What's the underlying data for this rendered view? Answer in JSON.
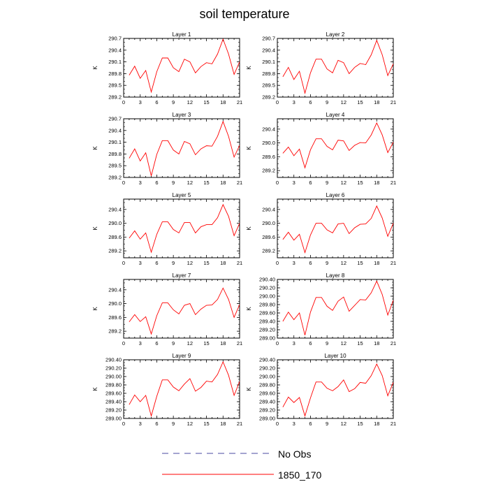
{
  "title": "soil temperature",
  "legend": {
    "items": [
      {
        "label": "No Obs",
        "color": "#4a4aa0",
        "dash": true
      },
      {
        "label": "1850_170",
        "color": "#ff0000",
        "dash": false
      }
    ]
  },
  "chart_data": [
    {
      "type": "line",
      "title": "Layer 1",
      "xlabel": "",
      "ylabel": "K",
      "xlim": [
        0,
        21
      ],
      "ylim": [
        289.2,
        290.7
      ],
      "xticks": [
        0,
        3,
        6,
        9,
        12,
        15,
        18,
        21
      ],
      "yticks": [
        289.2,
        289.5,
        289.8,
        290.1,
        290.4,
        290.7
      ],
      "yticklabels": [
        "289.2",
        "289.5",
        "289.8",
        "290.1",
        "290.4",
        "290.7"
      ],
      "series": [
        {
          "name": "1850_170",
          "color": "#ff0000",
          "x": [
            1,
            2,
            3,
            4,
            5,
            6,
            7,
            8,
            9,
            10,
            11,
            12,
            13,
            14,
            15,
            16,
            17,
            18,
            19,
            20,
            21
          ],
          "y": [
            289.76,
            289.99,
            289.68,
            289.88,
            289.33,
            289.85,
            290.2,
            290.2,
            289.95,
            289.85,
            290.17,
            290.1,
            289.82,
            289.98,
            290.08,
            290.05,
            290.3,
            290.68,
            290.3,
            289.78,
            290.1
          ]
        }
      ]
    },
    {
      "type": "line",
      "title": "Layer 2",
      "xlabel": "",
      "ylabel": "K",
      "xlim": [
        0,
        21
      ],
      "ylim": [
        289.2,
        290.7
      ],
      "xticks": [
        0,
        3,
        6,
        9,
        12,
        15,
        18,
        21
      ],
      "yticks": [
        289.2,
        289.5,
        289.8,
        290.1,
        290.4,
        290.7
      ],
      "yticklabels": [
        "289.2",
        "289.5",
        "289.8",
        "290.1",
        "290.4",
        "290.7"
      ],
      "series": [
        {
          "name": "1850_170",
          "color": "#ff0000",
          "x": [
            1,
            2,
            3,
            4,
            5,
            6,
            7,
            8,
            9,
            10,
            11,
            12,
            13,
            14,
            15,
            16,
            17,
            18,
            19,
            20,
            21
          ],
          "y": [
            289.72,
            289.96,
            289.65,
            289.86,
            289.3,
            289.82,
            290.17,
            290.17,
            289.92,
            289.82,
            290.14,
            290.08,
            289.8,
            289.96,
            290.06,
            290.03,
            290.28,
            290.65,
            290.28,
            289.75,
            290.05
          ]
        }
      ]
    },
    {
      "type": "line",
      "title": "Layer 3",
      "xlabel": "",
      "ylabel": "K",
      "xlim": [
        0,
        21
      ],
      "ylim": [
        289.2,
        290.7
      ],
      "xticks": [
        0,
        3,
        6,
        9,
        12,
        15,
        18,
        21
      ],
      "yticks": [
        289.2,
        289.5,
        289.8,
        290.1,
        290.4,
        290.7
      ],
      "yticklabels": [
        "289.2",
        "289.5",
        "289.8",
        "290.1",
        "290.4",
        "290.7"
      ],
      "series": [
        {
          "name": "1850_170",
          "color": "#ff0000",
          "x": [
            1,
            2,
            3,
            4,
            5,
            6,
            7,
            8,
            9,
            10,
            11,
            12,
            13,
            14,
            15,
            16,
            17,
            18,
            19,
            20,
            21
          ],
          "y": [
            289.69,
            289.93,
            289.62,
            289.83,
            289.24,
            289.79,
            290.14,
            290.14,
            289.9,
            289.8,
            290.12,
            290.06,
            289.78,
            289.93,
            290.01,
            290.0,
            290.25,
            290.63,
            290.25,
            289.72,
            290.02
          ]
        }
      ]
    },
    {
      "type": "line",
      "title": "Layer 4",
      "xlabel": "",
      "ylabel": "K",
      "xlim": [
        0,
        21
      ],
      "ylim": [
        289.0,
        290.7
      ],
      "xticks": [
        0,
        3,
        6,
        9,
        12,
        15,
        18,
        21
      ],
      "yticks": [
        289.2,
        289.6,
        290.0,
        290.4
      ],
      "yticklabels": [
        "289.2",
        "289.6",
        "290.0",
        "290.4"
      ],
      "series": [
        {
          "name": "1850_170",
          "color": "#ff0000",
          "x": [
            1,
            2,
            3,
            4,
            5,
            6,
            7,
            8,
            9,
            10,
            11,
            12,
            13,
            14,
            15,
            16,
            17,
            18,
            19,
            20,
            21
          ],
          "y": [
            289.7,
            289.88,
            289.63,
            289.82,
            289.28,
            289.8,
            290.12,
            290.12,
            289.9,
            289.8,
            290.08,
            290.06,
            289.78,
            289.93,
            290.01,
            290.0,
            290.23,
            290.58,
            290.23,
            289.72,
            290.02
          ]
        }
      ]
    },
    {
      "type": "line",
      "title": "Layer 5",
      "xlabel": "",
      "ylabel": "K",
      "xlim": [
        0,
        21
      ],
      "ylim": [
        289.0,
        290.7
      ],
      "xticks": [
        0,
        3,
        6,
        9,
        12,
        15,
        18,
        21
      ],
      "yticks": [
        289.2,
        289.6,
        290.0,
        290.4
      ],
      "yticklabels": [
        "289.2",
        "289.6",
        "290.0",
        "290.4"
      ],
      "series": [
        {
          "name": "1850_170",
          "color": "#ff0000",
          "x": [
            1,
            2,
            3,
            4,
            5,
            6,
            7,
            8,
            9,
            10,
            11,
            12,
            13,
            14,
            15,
            16,
            17,
            18,
            19,
            20,
            21
          ],
          "y": [
            289.57,
            289.78,
            289.54,
            289.72,
            289.16,
            289.68,
            290.04,
            290.04,
            289.82,
            289.72,
            290.02,
            290.02,
            289.72,
            289.9,
            289.96,
            289.96,
            290.16,
            290.54,
            290.2,
            289.64,
            290.0
          ]
        }
      ]
    },
    {
      "type": "line",
      "title": "Layer 6",
      "xlabel": "",
      "ylabel": "K",
      "xlim": [
        0,
        21
      ],
      "ylim": [
        289.0,
        290.7
      ],
      "xticks": [
        0,
        3,
        6,
        9,
        12,
        15,
        18,
        21
      ],
      "yticks": [
        289.2,
        289.6,
        290.0,
        290.4
      ],
      "yticklabels": [
        "289.2",
        "289.6",
        "290.0",
        "290.4"
      ],
      "series": [
        {
          "name": "1850_170",
          "color": "#ff0000",
          "x": [
            1,
            2,
            3,
            4,
            5,
            6,
            7,
            8,
            9,
            10,
            11,
            12,
            13,
            14,
            15,
            16,
            17,
            18,
            19,
            20,
            21
          ],
          "y": [
            289.53,
            289.74,
            289.51,
            289.68,
            289.15,
            289.66,
            290.0,
            290.0,
            289.81,
            289.72,
            289.98,
            290.0,
            289.7,
            289.87,
            289.97,
            289.98,
            290.14,
            290.5,
            290.15,
            289.62,
            290.0
          ]
        }
      ]
    },
    {
      "type": "line",
      "title": "Layer 7",
      "xlabel": "",
      "ylabel": "K",
      "xlim": [
        0,
        21
      ],
      "ylim": [
        289.0,
        290.7
      ],
      "xticks": [
        0,
        3,
        6,
        9,
        12,
        15,
        18,
        21
      ],
      "yticks": [
        289.2,
        289.6,
        290.0,
        290.4
      ],
      "yticklabels": [
        "289.2",
        "289.6",
        "290.0",
        "290.4"
      ],
      "series": [
        {
          "name": "1850_170",
          "color": "#ff0000",
          "x": [
            1,
            2,
            3,
            4,
            5,
            6,
            7,
            8,
            9,
            10,
            11,
            12,
            13,
            14,
            15,
            16,
            17,
            18,
            19,
            20,
            21
          ],
          "y": [
            289.47,
            289.68,
            289.48,
            289.62,
            289.12,
            289.65,
            290.02,
            290.02,
            289.82,
            289.7,
            289.95,
            290.0,
            289.68,
            289.84,
            289.95,
            289.96,
            290.12,
            290.45,
            290.12,
            289.6,
            289.97
          ]
        }
      ]
    },
    {
      "type": "line",
      "title": "Layer 8",
      "xlabel": "",
      "ylabel": "K",
      "xlim": [
        0,
        21
      ],
      "ylim": [
        289.0,
        290.4
      ],
      "xticks": [
        0,
        3,
        6,
        9,
        12,
        15,
        18,
        21
      ],
      "yticks": [
        289.0,
        289.2,
        289.4,
        289.6,
        289.8,
        290.0,
        290.2,
        290.4
      ],
      "yticklabels": [
        "289.00",
        "289.20",
        "289.40",
        "289.60",
        "289.80",
        "290.00",
        "290.20",
        "290.40"
      ],
      "series": [
        {
          "name": "1850_170",
          "color": "#ff0000",
          "x": [
            1,
            2,
            3,
            4,
            5,
            6,
            7,
            8,
            9,
            10,
            11,
            12,
            13,
            14,
            15,
            16,
            17,
            18,
            19,
            20,
            21
          ],
          "y": [
            289.4,
            289.62,
            289.44,
            289.6,
            289.07,
            289.62,
            289.97,
            289.97,
            289.76,
            289.66,
            289.88,
            289.98,
            289.64,
            289.78,
            289.92,
            289.91,
            290.08,
            290.36,
            290.04,
            289.55,
            289.9
          ]
        }
      ]
    },
    {
      "type": "line",
      "title": "Layer 9",
      "xlabel": "",
      "ylabel": "K",
      "xlim": [
        0,
        21
      ],
      "ylim": [
        289.0,
        290.4
      ],
      "xticks": [
        0,
        3,
        6,
        9,
        12,
        15,
        18,
        21
      ],
      "yticks": [
        289.0,
        289.2,
        289.4,
        289.6,
        289.8,
        290.0,
        290.2,
        290.4
      ],
      "yticklabels": [
        "289.00",
        "289.20",
        "289.40",
        "289.60",
        "289.80",
        "290.00",
        "290.20",
        "290.40"
      ],
      "series": [
        {
          "name": "1850_170",
          "color": "#ff0000",
          "x": [
            1,
            2,
            3,
            4,
            5,
            6,
            7,
            8,
            9,
            10,
            11,
            12,
            13,
            14,
            15,
            16,
            17,
            18,
            19,
            20,
            21
          ],
          "y": [
            289.33,
            289.56,
            289.4,
            289.55,
            289.06,
            289.53,
            289.92,
            289.92,
            289.75,
            289.66,
            289.82,
            289.95,
            289.65,
            289.74,
            289.89,
            289.87,
            290.05,
            290.35,
            290.03,
            289.55,
            289.88
          ]
        }
      ]
    },
    {
      "type": "line",
      "title": "Layer 10",
      "xlabel": "",
      "ylabel": "K",
      "xlim": [
        0,
        21
      ],
      "ylim": [
        289.0,
        290.4
      ],
      "xticks": [
        0,
        3,
        6,
        9,
        12,
        15,
        18,
        21
      ],
      "yticks": [
        289.0,
        289.2,
        289.4,
        289.6,
        289.8,
        290.0,
        290.2,
        290.4
      ],
      "yticklabels": [
        "289.00",
        "289.20",
        "289.40",
        "289.60",
        "289.80",
        "290.00",
        "290.20",
        "290.40"
      ],
      "series": [
        {
          "name": "1850_170",
          "color": "#ff0000",
          "x": [
            1,
            2,
            3,
            4,
            5,
            6,
            7,
            8,
            9,
            10,
            11,
            12,
            13,
            14,
            15,
            16,
            17,
            18,
            19,
            20,
            21
          ],
          "y": [
            289.27,
            289.51,
            289.38,
            289.5,
            289.06,
            289.49,
            289.87,
            289.87,
            289.72,
            289.66,
            289.76,
            289.92,
            289.64,
            289.71,
            289.86,
            289.84,
            290.02,
            290.3,
            290.02,
            289.54,
            289.86
          ]
        }
      ]
    }
  ]
}
